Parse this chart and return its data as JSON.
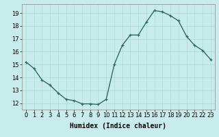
{
  "x": [
    0,
    1,
    2,
    3,
    4,
    5,
    6,
    7,
    8,
    9,
    10,
    11,
    12,
    13,
    14,
    15,
    16,
    17,
    18,
    19,
    20,
    21,
    22,
    23
  ],
  "y": [
    15.2,
    14.7,
    13.8,
    13.4,
    12.8,
    12.3,
    12.2,
    11.95,
    11.95,
    11.9,
    12.3,
    15.0,
    16.5,
    17.3,
    17.3,
    18.3,
    19.2,
    19.1,
    18.8,
    18.4,
    17.2,
    16.5,
    16.1,
    15.4
  ],
  "line_color": "#2e6b5e",
  "marker": "+",
  "marker_size": 3.5,
  "marker_lw": 0.9,
  "bg_color": "#c8ecec",
  "grid_color": "#b0d8d8",
  "xlabel": "Humidex (Indice chaleur)",
  "xlim": [
    -0.5,
    23.5
  ],
  "ylim": [
    11.5,
    19.7
  ],
  "yticks": [
    12,
    13,
    14,
    15,
    16,
    17,
    18,
    19
  ],
  "xticks": [
    0,
    1,
    2,
    3,
    4,
    5,
    6,
    7,
    8,
    9,
    10,
    11,
    12,
    13,
    14,
    15,
    16,
    17,
    18,
    19,
    20,
    21,
    22,
    23
  ],
  "xtick_labels": [
    "0",
    "1",
    "2",
    "3",
    "4",
    "5",
    "6",
    "7",
    "8",
    "9",
    "10",
    "11",
    "12",
    "13",
    "14",
    "15",
    "16",
    "17",
    "18",
    "19",
    "20",
    "21",
    "22",
    "23"
  ],
  "label_fontsize": 7,
  "tick_fontsize": 6,
  "linewidth": 1.0
}
